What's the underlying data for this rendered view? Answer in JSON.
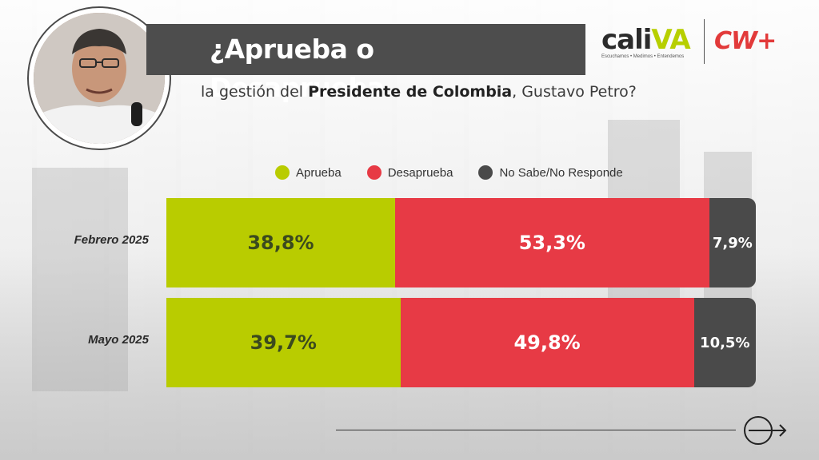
{
  "header": {
    "title": "¿Aprueba o Desaprueba",
    "subtitle_pre": "la gestión del ",
    "subtitle_bold": "Presidente de Colombia",
    "subtitle_post": ", Gustavo Petro?"
  },
  "logos": {
    "caliva_word_a": "cali",
    "caliva_word_b": "VA",
    "caliva_tagline": "Escuchamos • Medimos • Entendemos",
    "cw_text": "CW+"
  },
  "colors": {
    "aprueba": "#b9cc00",
    "desaprueba": "#e73a45",
    "no_sabe": "#4a4a4a"
  },
  "chart_data": {
    "type": "bar",
    "orientation": "horizontal",
    "stacked": true,
    "categories": [
      "Febrero 2025",
      "Mayo 2025"
    ],
    "series": [
      {
        "name": "Aprueba",
        "values": [
          38.8,
          39.7
        ],
        "labels": [
          "38,8%",
          "39,7%"
        ]
      },
      {
        "name": "Desaprueba",
        "values": [
          53.3,
          49.8
        ],
        "labels": [
          "53,3%",
          "49,8%"
        ]
      },
      {
        "name": "No Sabe/No Responde",
        "values": [
          7.9,
          10.5
        ],
        "labels": [
          "7,9%",
          "10,5%"
        ]
      }
    ],
    "xlim": [
      0,
      100
    ],
    "legend": "top",
    "grid": false
  }
}
